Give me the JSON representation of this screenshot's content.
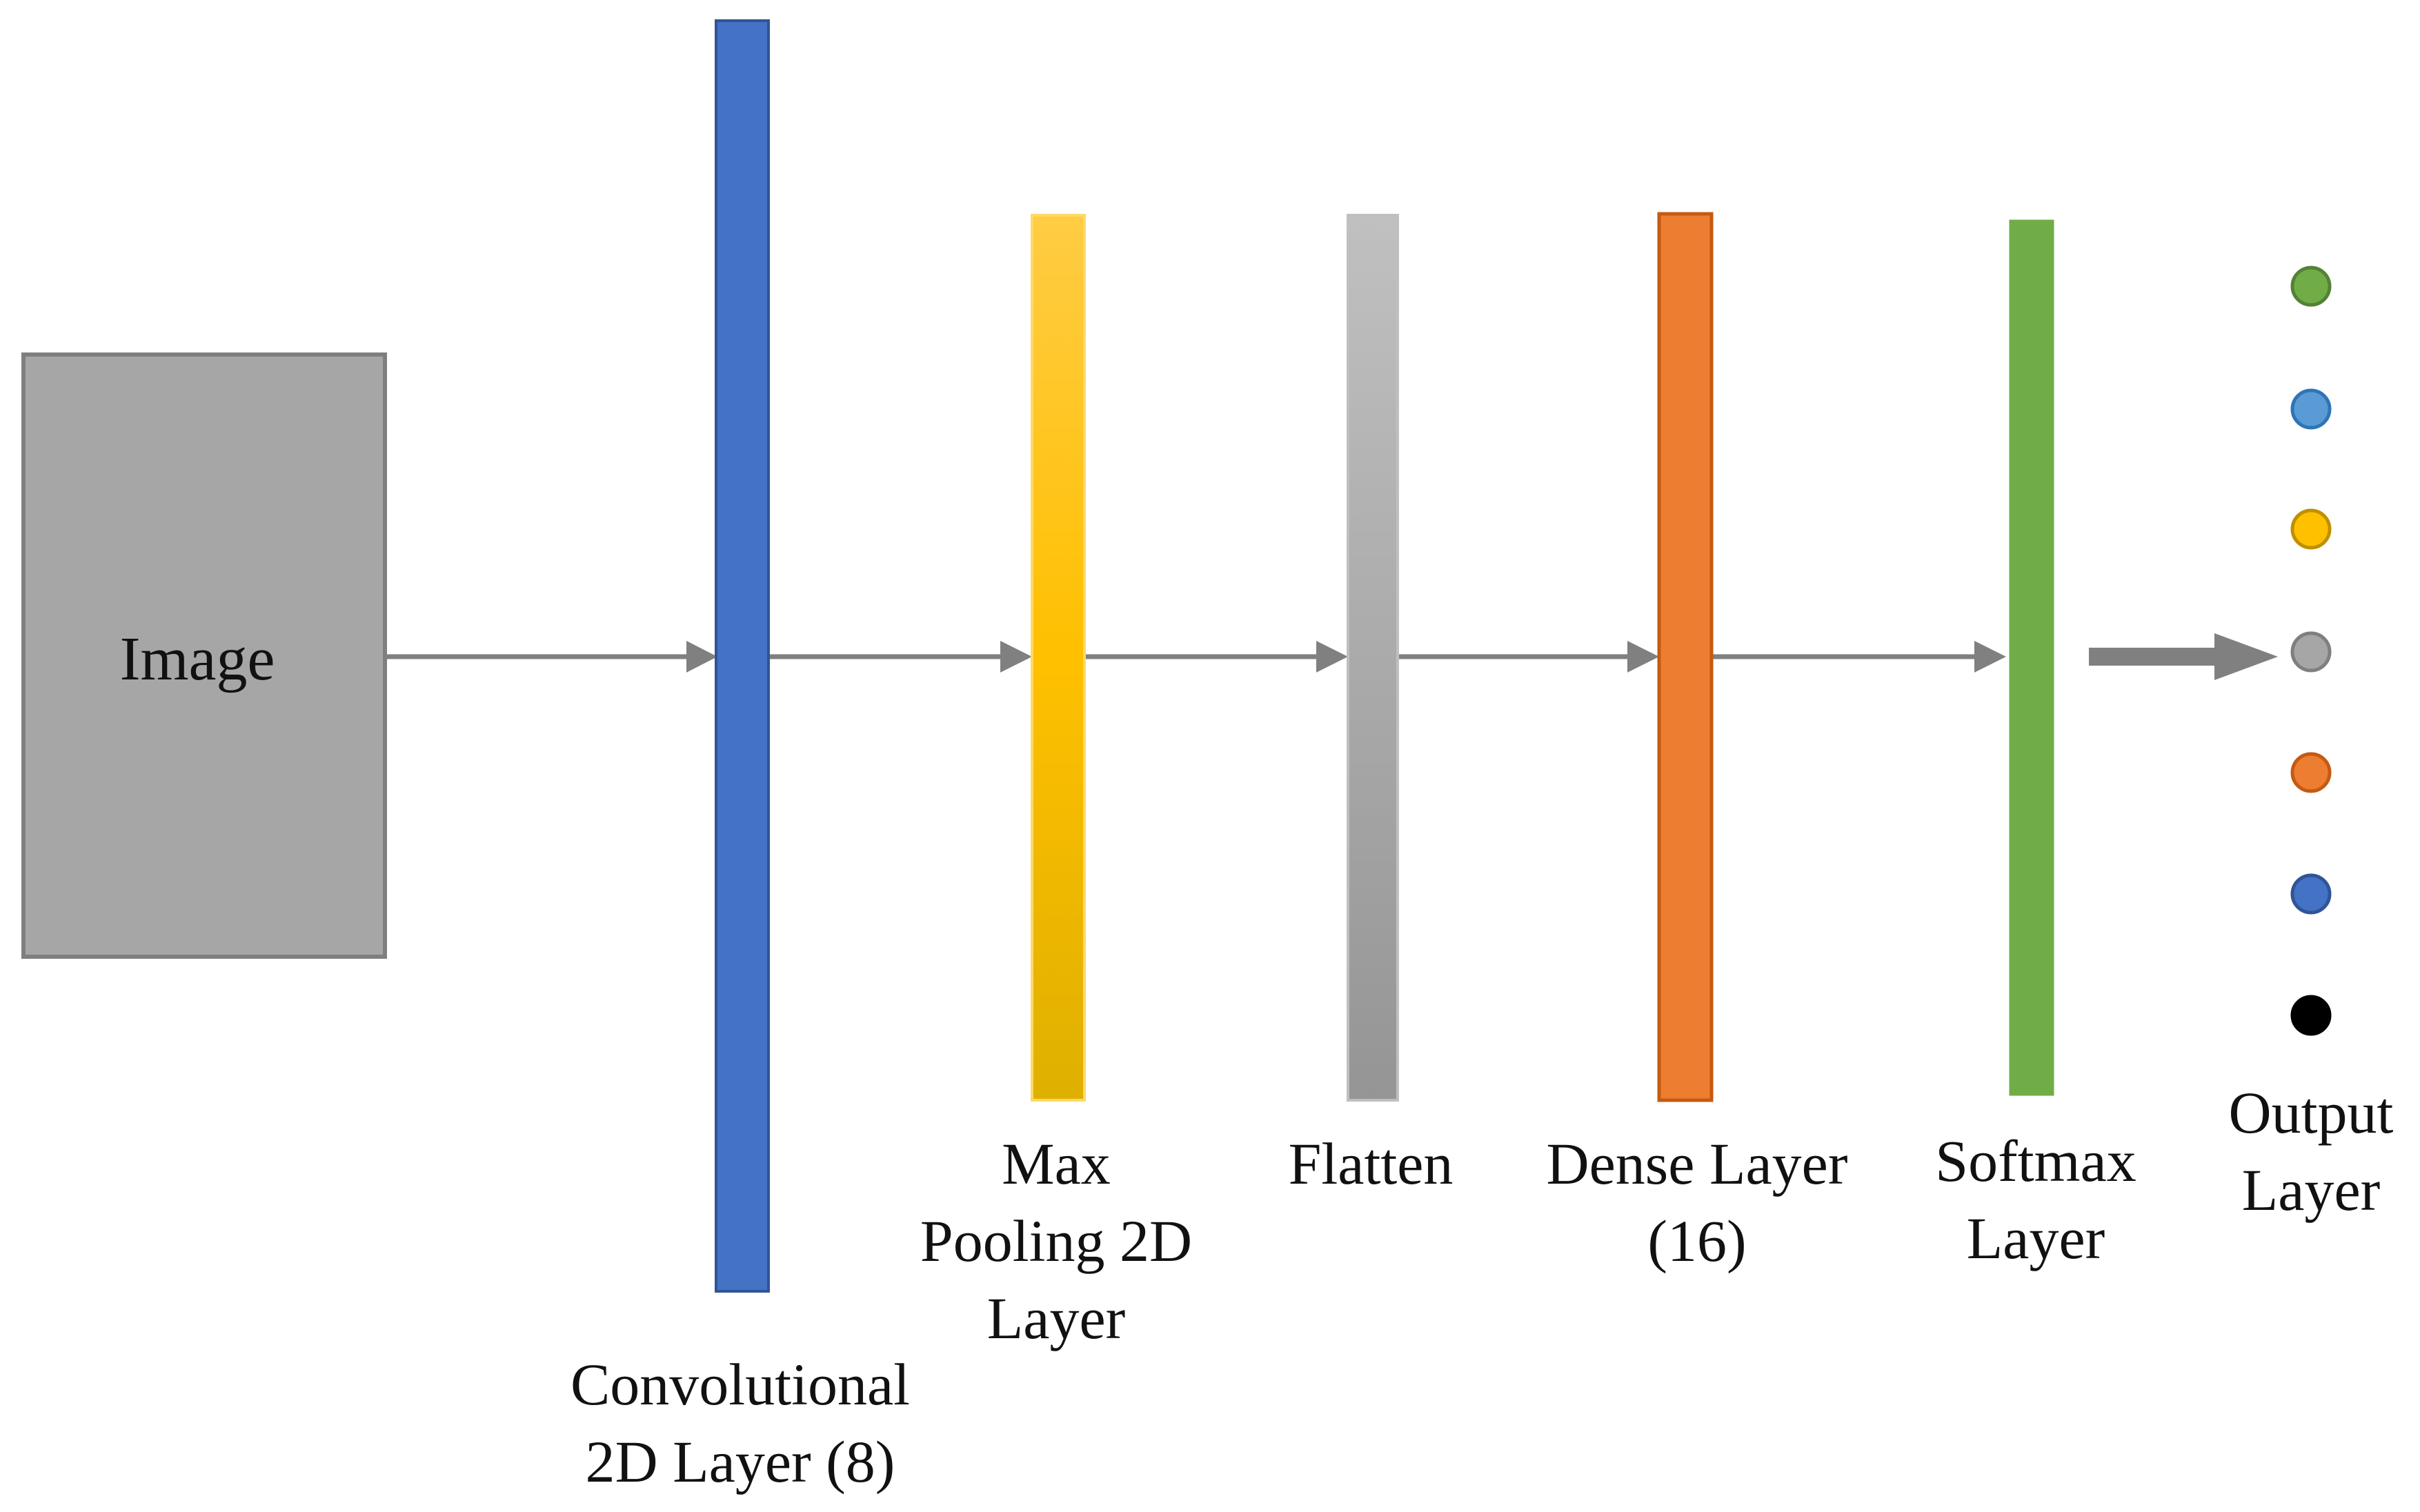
{
  "input": {
    "label": "Image",
    "fill": "#A6A6A6",
    "stroke": "#7F7F7F"
  },
  "layers": [
    {
      "id": "conv",
      "lines": [
        "Convolutional",
        "2D Layer (8)"
      ],
      "color": "#4472C4",
      "stroke": "#2F5597"
    },
    {
      "id": "maxpool",
      "lines": [
        "Max",
        "Pooling 2D",
        "Layer"
      ],
      "color_top": "#FFCC44",
      "color_mid": "#FFC000",
      "color_bottom": "#DFB000",
      "stroke": "#FFD966"
    },
    {
      "id": "flatten",
      "lines": [
        "Flatten"
      ],
      "color_top": "#C0C0C0",
      "color_bottom": "#959595",
      "stroke": "#BFBFBF"
    },
    {
      "id": "dense",
      "lines": [
        "Dense Layer",
        "(16)"
      ],
      "color": "#ED7D31",
      "stroke": "#C55A11"
    },
    {
      "id": "softmax",
      "lines": [
        "Softmax",
        "Layer"
      ],
      "color": "#70AD47",
      "stroke": "#70AD47"
    }
  ],
  "output": {
    "lines": [
      "Output",
      "Layer"
    ],
    "nodes": [
      {
        "color": "#70AD47",
        "stroke": "#548235"
      },
      {
        "color": "#5B9BD5",
        "stroke": "#2E75B6"
      },
      {
        "color": "#FFC000",
        "stroke": "#BF9000"
      },
      {
        "color": "#A6A6A6",
        "stroke": "#7F7F7F"
      },
      {
        "color": "#ED7D31",
        "stroke": "#C55A11"
      },
      {
        "color": "#4472C4",
        "stroke": "#2F5597"
      },
      {
        "color": "#000000",
        "stroke": "#000000"
      }
    ]
  },
  "arrow_color": "#808080"
}
